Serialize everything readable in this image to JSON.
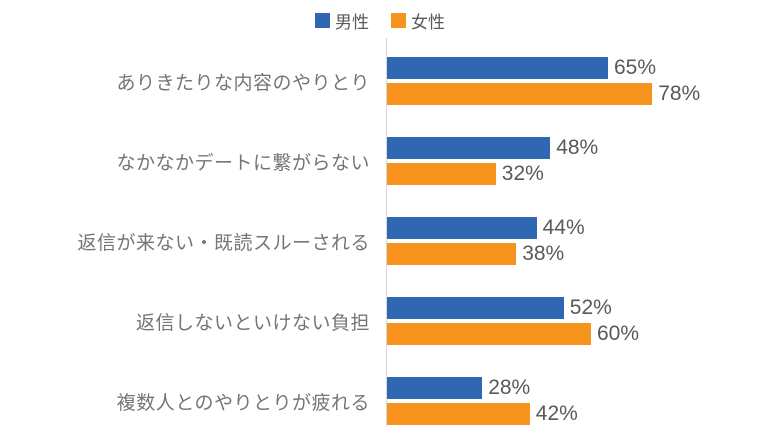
{
  "chart_data": {
    "type": "bar",
    "orientation": "horizontal",
    "title": "",
    "categories": [
      "ありきたりな内容のやりとり",
      "なかなかデートに繋がらない",
      "返信が来ない・既読スルーされる",
      "返信しないといけない負担",
      "複数人とのやりとりが疲れる"
    ],
    "series": [
      {
        "key": "male",
        "name": "男性",
        "color": "#2F67B3",
        "values": [
          65,
          48,
          44,
          52,
          28
        ]
      },
      {
        "key": "female",
        "name": "女性",
        "color": "#F7941E",
        "values": [
          78,
          32,
          38,
          60,
          42
        ]
      }
    ],
    "value_suffix": "%",
    "xlim": [
      0,
      100
    ],
    "grid": false,
    "legend_position": "top",
    "axis_line_color": "#d9d9d9",
    "category_label_color": "#757575",
    "value_label_color": "#595959"
  }
}
